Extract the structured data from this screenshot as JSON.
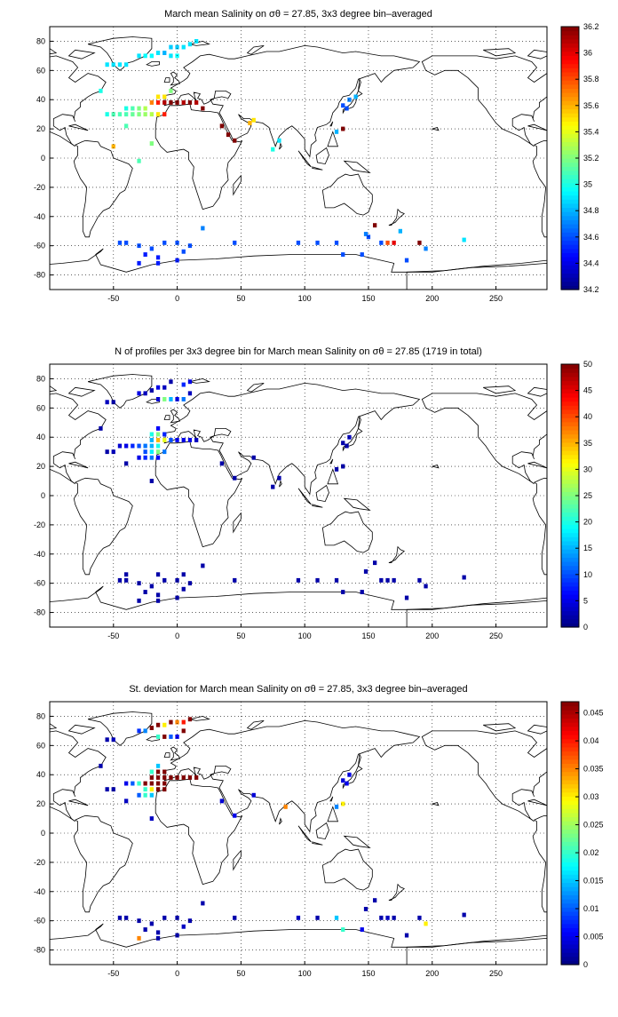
{
  "chart_data": [
    {
      "type": "heatmap",
      "title": "March mean Salinity on σθ = 27.85, 3x3 degree bin–averaged",
      "x_ticks": [
        "-50",
        "0",
        "50",
        "100",
        "150",
        "200",
        "250"
      ],
      "y_ticks": [
        "80",
        "60",
        "40",
        "20",
        "0",
        "-20",
        "-40",
        "-60",
        "-80"
      ],
      "xlim": [
        -100,
        290
      ],
      "ylim": [
        -90,
        90
      ],
      "grid": true,
      "colorbar": {
        "min": 34.2,
        "max": 36.2,
        "ticks": [
          "36.2",
          "36",
          "35.8",
          "35.6",
          "35.4",
          "35.2",
          "35",
          "34.8",
          "34.6",
          "34.4",
          "34.2"
        ]
      },
      "bin_size_deg": 3,
      "cells": [
        [
          -55,
          64,
          34.9
        ],
        [
          -50,
          64,
          34.9
        ],
        [
          -45,
          64,
          34.9
        ],
        [
          -40,
          64,
          34.9
        ],
        [
          -30,
          70,
          34.9
        ],
        [
          -25,
          70,
          34.95
        ],
        [
          -20,
          70,
          34.95
        ],
        [
          -15,
          72,
          34.9
        ],
        [
          -10,
          72,
          34.8
        ],
        [
          -5,
          76,
          34.85
        ],
        [
          0,
          76,
          34.85
        ],
        [
          5,
          76,
          34.9
        ],
        [
          10,
          78,
          34.9
        ],
        [
          15,
          80,
          34.9
        ],
        [
          -5,
          70,
          34.9
        ],
        [
          0,
          70,
          34.95
        ],
        [
          -60,
          46,
          35.0
        ],
        [
          -55,
          30,
          35.0
        ],
        [
          -50,
          30,
          35.1
        ],
        [
          -45,
          30,
          35.1
        ],
        [
          -40,
          30,
          35.1
        ],
        [
          -35,
          30,
          35.15
        ],
        [
          -30,
          30,
          35.2
        ],
        [
          -25,
          30,
          35.25
        ],
        [
          -20,
          30,
          35.3
        ],
        [
          -15,
          30,
          35.5
        ],
        [
          -10,
          30,
          35.9
        ],
        [
          -40,
          34,
          35.0
        ],
        [
          -35,
          34,
          35.1
        ],
        [
          -30,
          34,
          35.2
        ],
        [
          -25,
          34,
          35.3
        ],
        [
          -20,
          38,
          35.7
        ],
        [
          -15,
          38,
          35.9
        ],
        [
          -10,
          38,
          36.1
        ],
        [
          -5,
          38,
          36.2
        ],
        [
          0,
          38,
          36.2
        ],
        [
          5,
          38,
          36.1
        ],
        [
          10,
          38,
          36.2
        ],
        [
          15,
          38,
          36.1
        ],
        [
          20,
          34,
          36.2
        ],
        [
          -15,
          42,
          35.5
        ],
        [
          -10,
          42,
          35.5
        ],
        [
          -5,
          46,
          35.2
        ],
        [
          35,
          22,
          36.2
        ],
        [
          40,
          16,
          36.2
        ],
        [
          45,
          12,
          36.2
        ],
        [
          57,
          24,
          35.6
        ],
        [
          60,
          26,
          35.5
        ],
        [
          -50,
          8,
          35.6
        ],
        [
          -40,
          22,
          35.1
        ],
        [
          -20,
          10,
          35.2
        ],
        [
          -30,
          -2,
          35.1
        ],
        [
          130,
          36,
          34.6
        ],
        [
          135,
          40,
          34.7
        ],
        [
          140,
          42,
          34.8
        ],
        [
          133,
          34,
          34.6
        ],
        [
          125,
          18,
          34.8
        ],
        [
          130,
          20,
          36.2
        ],
        [
          80,
          12,
          34.9
        ],
        [
          75,
          6,
          35.0
        ],
        [
          -45,
          -58,
          34.6
        ],
        [
          -40,
          -58,
          34.6
        ],
        [
          -30,
          -60,
          34.6
        ],
        [
          -20,
          -62,
          34.6
        ],
        [
          -10,
          -58,
          34.6
        ],
        [
          0,
          -58,
          34.6
        ],
        [
          5,
          -64,
          34.6
        ],
        [
          -25,
          -66,
          34.5
        ],
        [
          -15,
          -68,
          34.5
        ],
        [
          0,
          -70,
          34.5
        ],
        [
          -30,
          -72,
          34.5
        ],
        [
          -15,
          -72,
          34.5
        ],
        [
          20,
          -48,
          34.7
        ],
        [
          10,
          -60,
          34.6
        ],
        [
          45,
          -58,
          34.6
        ],
        [
          95,
          -58,
          34.6
        ],
        [
          110,
          -58,
          34.6
        ],
        [
          125,
          -58,
          34.6
        ],
        [
          130,
          -66,
          34.6
        ],
        [
          145,
          -66,
          34.6
        ],
        [
          160,
          -58,
          34.6
        ],
        [
          165,
          -58,
          35.8
        ],
        [
          170,
          -58,
          36.0
        ],
        [
          190,
          -58,
          36.2
        ],
        [
          195,
          -62,
          34.7
        ],
        [
          180,
          -70,
          34.6
        ],
        [
          225,
          -56,
          34.9
        ],
        [
          148,
          -52,
          34.7
        ],
        [
          155,
          -46,
          36.2
        ],
        [
          150,
          -54,
          34.6
        ],
        [
          175,
          -50,
          34.8
        ]
      ]
    },
    {
      "type": "heatmap",
      "title": "N of profiles per 3x3 degree bin for March mean Salinity on σθ = 27.85 (1719 in total)",
      "x_ticks": [
        "-50",
        "0",
        "50",
        "100",
        "150",
        "200",
        "250"
      ],
      "y_ticks": [
        "80",
        "60",
        "40",
        "20",
        "0",
        "-20",
        "-40",
        "-60",
        "-80"
      ],
      "xlim": [
        -100,
        290
      ],
      "ylim": [
        -90,
        90
      ],
      "grid": true,
      "colorbar": {
        "min": 0,
        "max": 50,
        "ticks": [
          "50",
          "45",
          "40",
          "35",
          "30",
          "25",
          "20",
          "15",
          "10",
          "5",
          "0"
        ]
      },
      "bin_size_deg": 3,
      "cells": [
        [
          -55,
          64,
          3
        ],
        [
          -50,
          64,
          2
        ],
        [
          -30,
          70,
          5
        ],
        [
          -25,
          70,
          3
        ],
        [
          -20,
          72,
          2
        ],
        [
          -15,
          74,
          5
        ],
        [
          -10,
          74,
          3
        ],
        [
          -5,
          78,
          2
        ],
        [
          5,
          76,
          8
        ],
        [
          10,
          78,
          5
        ],
        [
          -15,
          66,
          4
        ],
        [
          -10,
          66,
          25
        ],
        [
          -5,
          66,
          15
        ],
        [
          0,
          66,
          5
        ],
        [
          5,
          66,
          12
        ],
        [
          10,
          70,
          3
        ],
        [
          -60,
          46,
          2
        ],
        [
          -55,
          30,
          2
        ],
        [
          -50,
          30,
          3
        ],
        [
          -45,
          34,
          4
        ],
        [
          -40,
          34,
          5
        ],
        [
          -35,
          34,
          8
        ],
        [
          -30,
          34,
          10
        ],
        [
          -25,
          34,
          12
        ],
        [
          -20,
          34,
          15
        ],
        [
          -15,
          34,
          20
        ],
        [
          -10,
          38,
          30
        ],
        [
          -15,
          38,
          35
        ],
        [
          -20,
          38,
          15
        ],
        [
          -5,
          38,
          10
        ],
        [
          0,
          38,
          6
        ],
        [
          5,
          38,
          5
        ],
        [
          10,
          38,
          5
        ],
        [
          15,
          38,
          3
        ],
        [
          -25,
          30,
          10
        ],
        [
          -20,
          30,
          18
        ],
        [
          -15,
          30,
          25
        ],
        [
          -10,
          30,
          12
        ],
        [
          -30,
          26,
          5
        ],
        [
          -25,
          26,
          8
        ],
        [
          -20,
          26,
          12
        ],
        [
          -15,
          26,
          6
        ],
        [
          -20,
          42,
          20
        ],
        [
          -15,
          42,
          25
        ],
        [
          -10,
          42,
          8
        ],
        [
          -15,
          46,
          6
        ],
        [
          -40,
          22,
          2
        ],
        [
          -20,
          10,
          2
        ],
        [
          35,
          22,
          2
        ],
        [
          45,
          12,
          2
        ],
        [
          60,
          26,
          2
        ],
        [
          80,
          12,
          2
        ],
        [
          75,
          6,
          2
        ],
        [
          130,
          36,
          2
        ],
        [
          135,
          40,
          3
        ],
        [
          133,
          34,
          2
        ],
        [
          125,
          18,
          2
        ],
        [
          130,
          20,
          2
        ],
        [
          -45,
          -58,
          2
        ],
        [
          -40,
          -58,
          2
        ],
        [
          -30,
          -60,
          2
        ],
        [
          -20,
          -62,
          2
        ],
        [
          -10,
          -58,
          2
        ],
        [
          0,
          -58,
          2
        ],
        [
          5,
          -64,
          2
        ],
        [
          -25,
          -66,
          2
        ],
        [
          -15,
          -68,
          2
        ],
        [
          0,
          -70,
          2
        ],
        [
          -30,
          -72,
          2
        ],
        [
          -15,
          -72,
          2
        ],
        [
          20,
          -48,
          2
        ],
        [
          10,
          -60,
          2
        ],
        [
          45,
          -58,
          2
        ],
        [
          95,
          -58,
          2
        ],
        [
          110,
          -58,
          2
        ],
        [
          125,
          -58,
          2
        ],
        [
          130,
          -66,
          2
        ],
        [
          145,
          -66,
          2
        ],
        [
          160,
          -58,
          2
        ],
        [
          165,
          -58,
          2
        ],
        [
          170,
          -58,
          2
        ],
        [
          190,
          -58,
          2
        ],
        [
          195,
          -62,
          2
        ],
        [
          180,
          -70,
          2
        ],
        [
          225,
          -56,
          2
        ],
        [
          148,
          -52,
          2
        ],
        [
          155,
          -46,
          2
        ],
        [
          -40,
          -54,
          2
        ],
        [
          -15,
          -54,
          2
        ],
        [
          5,
          -54,
          2
        ]
      ]
    },
    {
      "type": "heatmap",
      "title": "St. deviation for March mean Salinity on σθ = 27.85, 3x3 degree bin–averaged",
      "x_ticks": [
        "-50",
        "0",
        "50",
        "100",
        "150",
        "200",
        "250"
      ],
      "y_ticks": [
        "80",
        "60",
        "40",
        "20",
        "0",
        "-20",
        "-40",
        "-60",
        "-80"
      ],
      "xlim": [
        -100,
        290
      ],
      "ylim": [
        -90,
        90
      ],
      "grid": true,
      "colorbar": {
        "min": 0,
        "max": 0.047,
        "ticks": [
          "0.045",
          "0.04",
          "0.035",
          "0.03",
          "0.025",
          "0.02",
          "0.015",
          "0.01",
          "0.005",
          "0"
        ]
      },
      "bin_size_deg": 3,
      "cells": [
        [
          -55,
          64,
          0.002
        ],
        [
          -50,
          64,
          0.003
        ],
        [
          -30,
          70,
          0.008
        ],
        [
          -25,
          70,
          0.012
        ],
        [
          -20,
          72,
          0.047
        ],
        [
          -15,
          74,
          0.047
        ],
        [
          -10,
          74,
          0.03
        ],
        [
          -5,
          76,
          0.047
        ],
        [
          0,
          76,
          0.035
        ],
        [
          5,
          76,
          0.04
        ],
        [
          10,
          78,
          0.047
        ],
        [
          -15,
          66,
          0.02
        ],
        [
          -10,
          66,
          0.047
        ],
        [
          -5,
          66,
          0.01
        ],
        [
          0,
          66,
          0.005
        ],
        [
          5,
          70,
          0.047
        ],
        [
          -60,
          46,
          0.002
        ],
        [
          -55,
          30,
          0.002
        ],
        [
          -50,
          30,
          0.002
        ],
        [
          -40,
          34,
          0.005
        ],
        [
          -35,
          34,
          0.01
        ],
        [
          -30,
          34,
          0.02
        ],
        [
          -25,
          34,
          0.047
        ],
        [
          -20,
          34,
          0.047
        ],
        [
          -15,
          34,
          0.047
        ],
        [
          -10,
          34,
          0.047
        ],
        [
          -5,
          38,
          0.047
        ],
        [
          0,
          38,
          0.047
        ],
        [
          5,
          38,
          0.047
        ],
        [
          10,
          38,
          0.047
        ],
        [
          15,
          38,
          0.047
        ],
        [
          -20,
          38,
          0.047
        ],
        [
          -15,
          38,
          0.047
        ],
        [
          -10,
          38,
          0.047
        ],
        [
          -25,
          30,
          0.02
        ],
        [
          -20,
          30,
          0.03
        ],
        [
          -15,
          30,
          0.047
        ],
        [
          -10,
          30,
          0.047
        ],
        [
          -30,
          26,
          0.01
        ],
        [
          -25,
          26,
          0.02
        ],
        [
          -20,
          26,
          0.015
        ],
        [
          -15,
          42,
          0.047
        ],
        [
          -10,
          42,
          0.047
        ],
        [
          -20,
          42,
          0.02
        ],
        [
          -15,
          46,
          0.015
        ],
        [
          -40,
          22,
          0.003
        ],
        [
          -20,
          10,
          0.003
        ],
        [
          35,
          22,
          0.004
        ],
        [
          45,
          12,
          0.005
        ],
        [
          60,
          26,
          0.004
        ],
        [
          85,
          18,
          0.035
        ],
        [
          130,
          36,
          0.004
        ],
        [
          135,
          40,
          0.005
        ],
        [
          133,
          34,
          0.005
        ],
        [
          125,
          18,
          0.012
        ],
        [
          130,
          20,
          0.03
        ],
        [
          -45,
          -58,
          0.002
        ],
        [
          -40,
          -58,
          0.002
        ],
        [
          -30,
          -60,
          0.002
        ],
        [
          -20,
          -62,
          0.002
        ],
        [
          -10,
          -58,
          0.002
        ],
        [
          0,
          -58,
          0.002
        ],
        [
          5,
          -64,
          0.003
        ],
        [
          -25,
          -66,
          0.002
        ],
        [
          -15,
          -68,
          0.002
        ],
        [
          0,
          -70,
          0.002
        ],
        [
          -30,
          -72,
          0.035
        ],
        [
          -15,
          -72,
          0.002
        ],
        [
          20,
          -48,
          0.002
        ],
        [
          10,
          -60,
          0.002
        ],
        [
          45,
          -58,
          0.002
        ],
        [
          95,
          -58,
          0.003
        ],
        [
          110,
          -58,
          0.002
        ],
        [
          125,
          -58,
          0.015
        ],
        [
          130,
          -66,
          0.02
        ],
        [
          145,
          -66,
          0.005
        ],
        [
          160,
          -58,
          0.002
        ],
        [
          165,
          -58,
          0.003
        ],
        [
          170,
          -58,
          0.002
        ],
        [
          190,
          -58,
          0.002
        ],
        [
          195,
          -62,
          0.03
        ],
        [
          180,
          -70,
          0.002
        ],
        [
          225,
          -56,
          0.002
        ],
        [
          148,
          -52,
          0.002
        ],
        [
          155,
          -46,
          0.002
        ]
      ]
    }
  ]
}
